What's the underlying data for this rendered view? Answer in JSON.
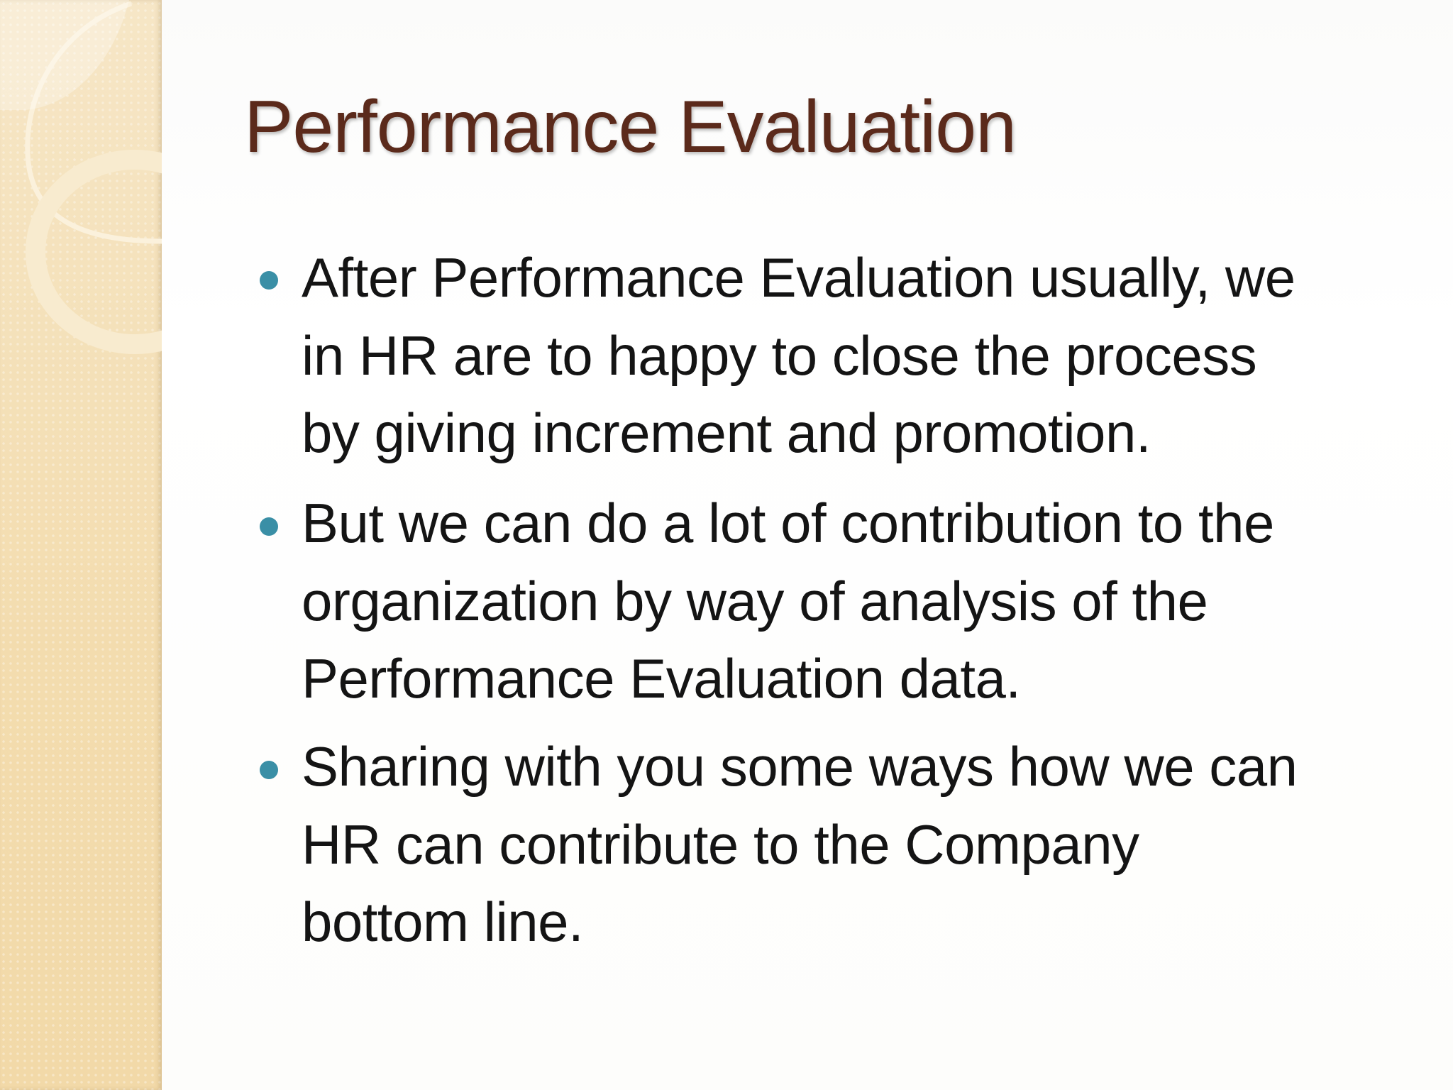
{
  "slide": {
    "title": "Performance Evaluation",
    "bullet_color": "#3a8fa6",
    "title_color": "#5b2a1b",
    "bullets": [
      {
        "lines": [
          "After Performance Evaluation usually,  we",
          "in HR are to happy to close the process",
          "by giving increment and promotion."
        ]
      },
      {
        "lines": [
          "But we can do a lot of contribution to the",
          "organization by way of analysis of the",
          "Performance Evaluation data."
        ]
      },
      {
        "lines": [
          "Sharing with you some ways how we can",
          "HR can contribute to the Company",
          "bottom line."
        ]
      }
    ]
  }
}
